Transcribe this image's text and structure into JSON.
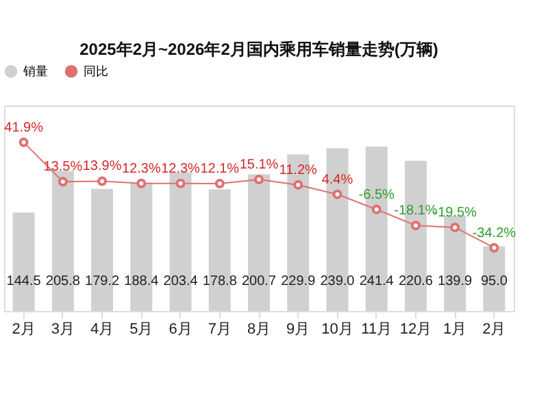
{
  "chart_data": {
    "type": "bar",
    "title": "2025年2月~2026年2月国内乘用车销量走势(万辆)",
    "categories": [
      "2月",
      "3月",
      "4月",
      "5月",
      "6月",
      "7月",
      "8月",
      "9月",
      "10月",
      "11月",
      "12月",
      "1月",
      "2月"
    ],
    "series": [
      {
        "name": "销量",
        "color": "#d0d0d0",
        "value_labels": [
          "144.5",
          "205.8",
          "179.2",
          "188.4",
          "203.4",
          "178.8",
          "200.7",
          "229.9",
          "239.0",
          "241.4",
          "220.6",
          "139.9",
          "95.0"
        ],
        "values": [
          144.5,
          205.8,
          179.2,
          188.4,
          203.4,
          178.8,
          200.7,
          229.9,
          239.0,
          241.4,
          220.6,
          139.9,
          95.0
        ]
      },
      {
        "name": "同比",
        "type": "line",
        "axis": "y2",
        "color": "#e07070",
        "marker": "circle",
        "value_labels": [
          "41.9%",
          "13.5%",
          "13.9%",
          "12.3%",
          "12.3%",
          "12.1%",
          "15.1%",
          "11.2%",
          "4.4%",
          "-6.5%",
          "-18.1%",
          "-19.5%",
          "-34.2%"
        ],
        "values": [
          41.9,
          13.5,
          13.9,
          12.3,
          12.3,
          12.1,
          15.1,
          11.2,
          4.4,
          -6.5,
          -18.1,
          -19.5,
          -34.2
        ]
      }
    ],
    "legend": "top",
    "grid": false
  }
}
